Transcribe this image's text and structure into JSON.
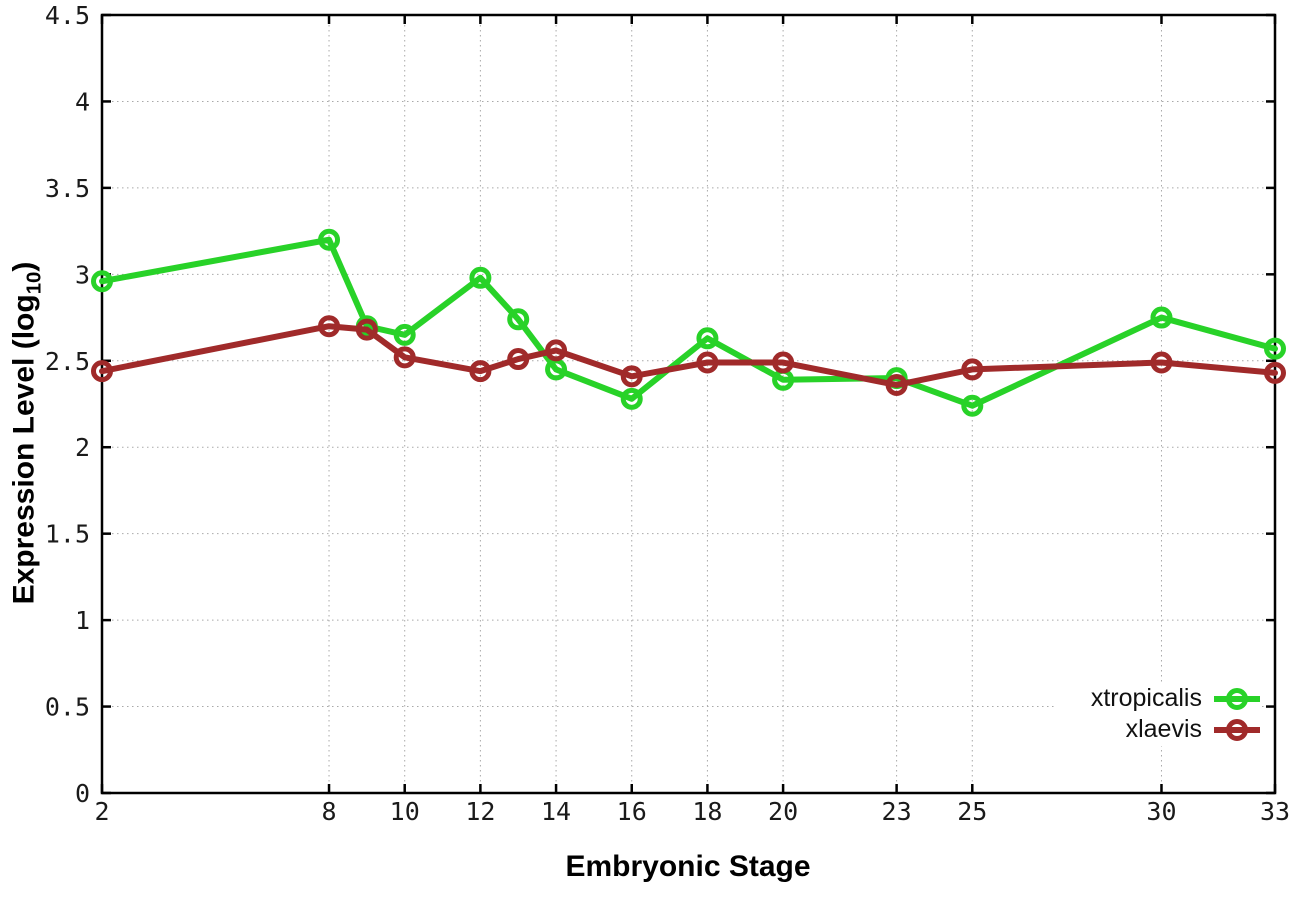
{
  "chart_data": {
    "type": "line",
    "title": "",
    "xlabel": "Embryonic Stage",
    "ylabel": "Expression Level (log10)",
    "ylabel_parts": {
      "prefix": "Expression Level (log",
      "sub": "10",
      "suffix": ")"
    },
    "xlim": [
      2,
      33
    ],
    "ylim": [
      0,
      4.5
    ],
    "grid": true,
    "legend_position": "bottom-right",
    "x": [
      2,
      8,
      9,
      10,
      12,
      13,
      14,
      16,
      18,
      20,
      23,
      25,
      30,
      33
    ],
    "x_tick_values": [
      2,
      8,
      10,
      12,
      14,
      16,
      18,
      20,
      23,
      25,
      30,
      33
    ],
    "x_tick_labels": [
      "2",
      "8",
      "10",
      "12",
      "14",
      "16",
      "18",
      "20",
      "23",
      "25",
      "30",
      "33"
    ],
    "y_tick_values": [
      0,
      0.5,
      1,
      1.5,
      2,
      2.5,
      3,
      3.5,
      4,
      4.5
    ],
    "y_tick_labels": [
      "0",
      "0.5",
      "1",
      "1.5",
      "2",
      "2.5",
      "3",
      "3.5",
      "4",
      "4.5"
    ],
    "series": [
      {
        "name": "xtropicalis",
        "color": "#28d228",
        "values": [
          2.96,
          3.2,
          2.7,
          2.65,
          2.98,
          2.74,
          2.45,
          2.28,
          2.63,
          2.39,
          2.4,
          2.24,
          2.75,
          2.57
        ]
      },
      {
        "name": "xlaevis",
        "color": "#a02a2a",
        "values": [
          2.44,
          2.7,
          2.68,
          2.52,
          2.44,
          2.51,
          2.56,
          2.41,
          2.49,
          2.49,
          2.36,
          2.45,
          2.49,
          2.43
        ]
      }
    ]
  }
}
